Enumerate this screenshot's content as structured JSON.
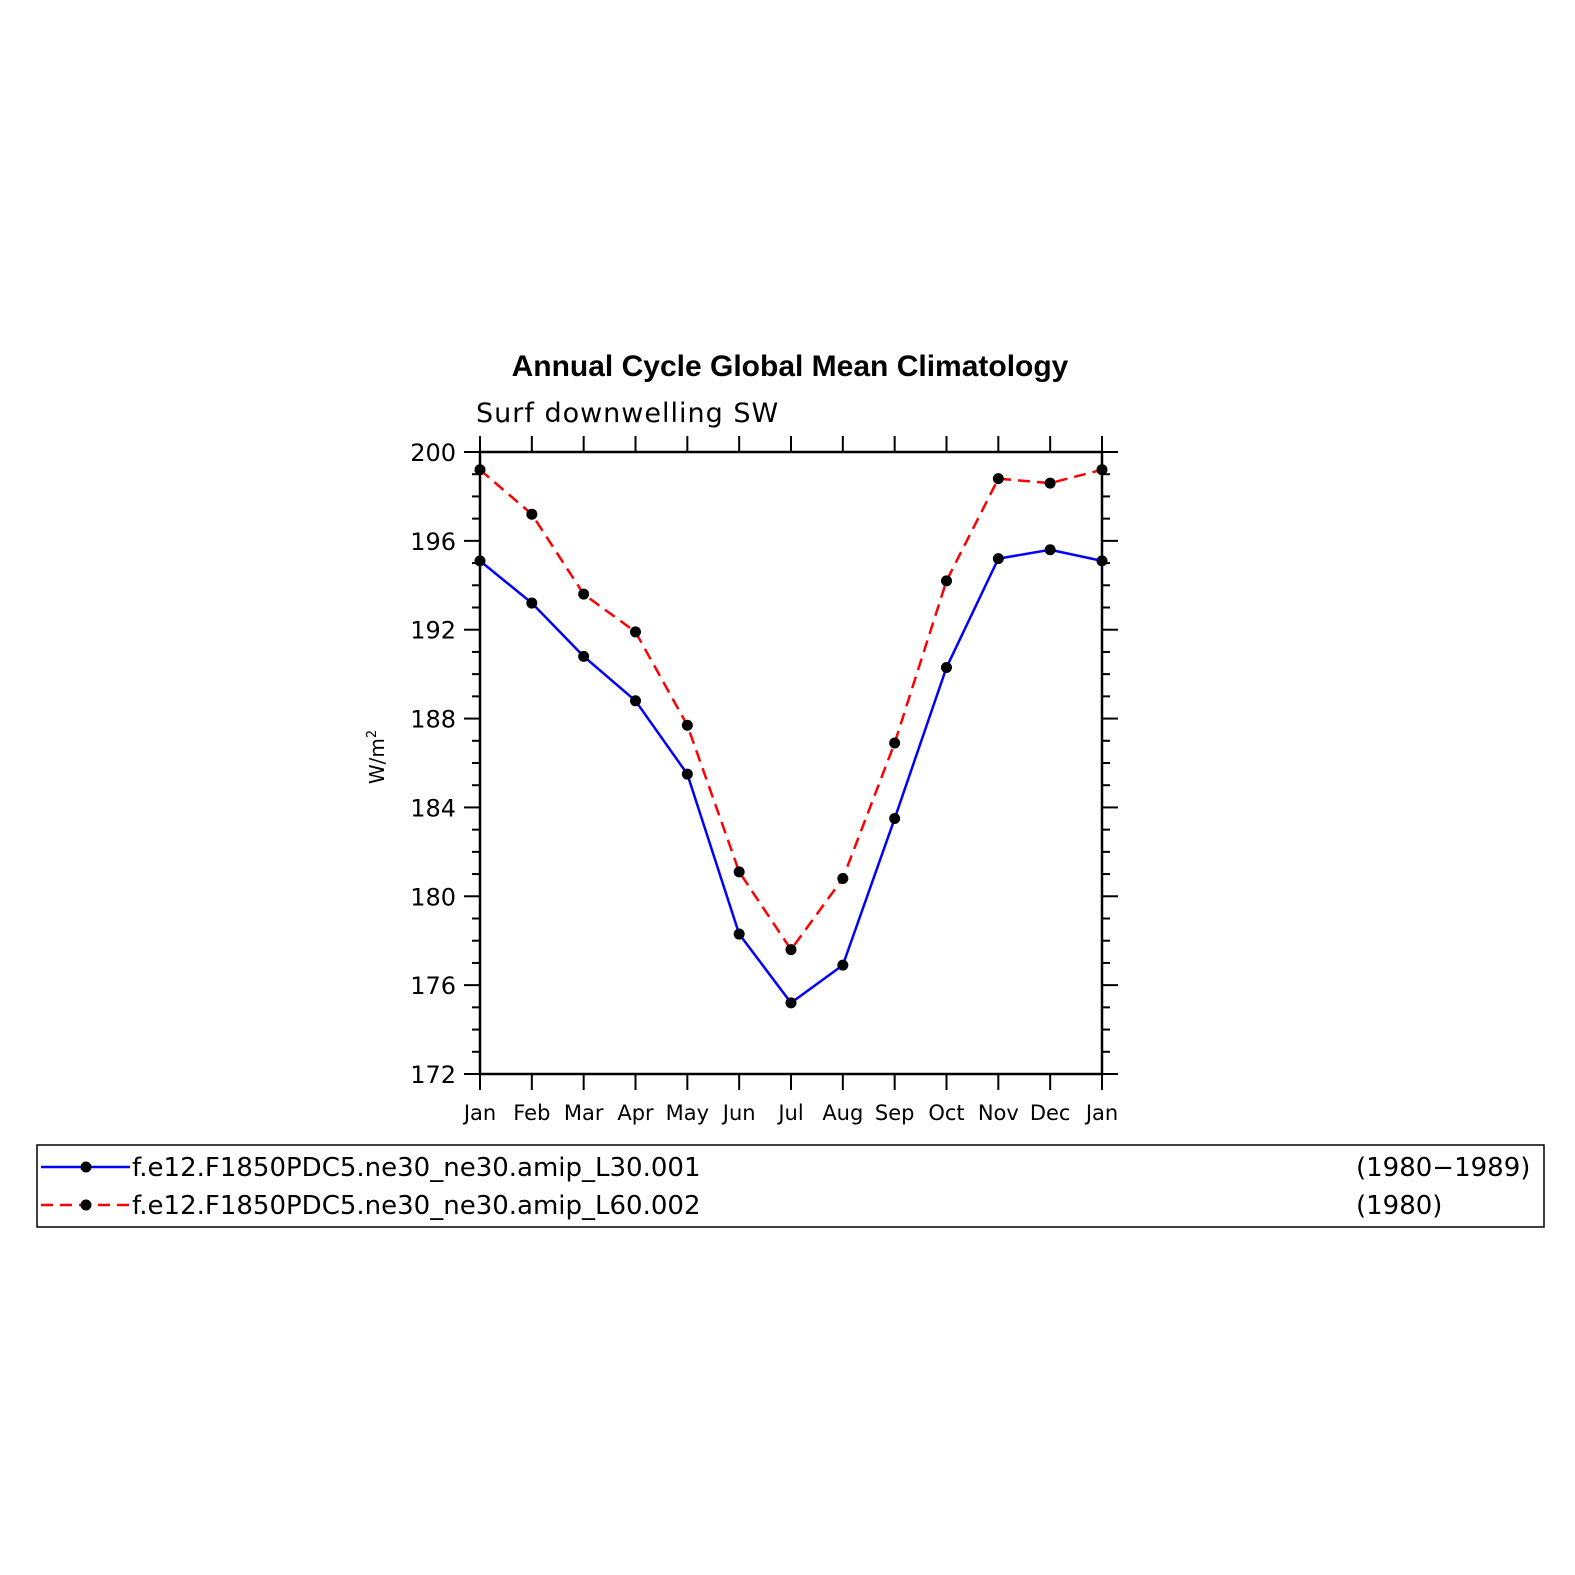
{
  "chart_data": {
    "type": "line",
    "title": "Annual Cycle Global Mean Climatology",
    "subtitle": "Surf downwelling SW",
    "ylabel": "W/m",
    "ylabel_sup": "2",
    "xlabel": "",
    "categories": [
      "Jan",
      "Feb",
      "Mar",
      "Apr",
      "May",
      "Jun",
      "Jul",
      "Aug",
      "Sep",
      "Oct",
      "Nov",
      "Dec",
      "Jan"
    ],
    "ylim": [
      172,
      200
    ],
    "yticks": [
      172,
      176,
      180,
      184,
      188,
      192,
      196,
      200
    ],
    "grid": false,
    "legend_position": "bottom",
    "series": [
      {
        "name": "f.e12.F1850PDC5.ne30_ne30.amip_L30.001",
        "period": "(1980−1989)",
        "color": "#0000ff",
        "line_style": "solid",
        "values": [
          195.1,
          193.2,
          190.8,
          188.8,
          185.5,
          178.3,
          175.2,
          176.9,
          183.5,
          190.3,
          195.2,
          195.6,
          195.1
        ]
      },
      {
        "name": "f.e12.F1850PDC5.ne30_ne30.amip_L60.002",
        "period": "(1980)",
        "color": "#ff0000",
        "line_style": "dashed",
        "values": [
          199.2,
          197.2,
          193.6,
          191.9,
          187.7,
          181.1,
          177.6,
          180.8,
          186.9,
          194.2,
          198.8,
          198.6,
          199.2
        ]
      }
    ]
  }
}
